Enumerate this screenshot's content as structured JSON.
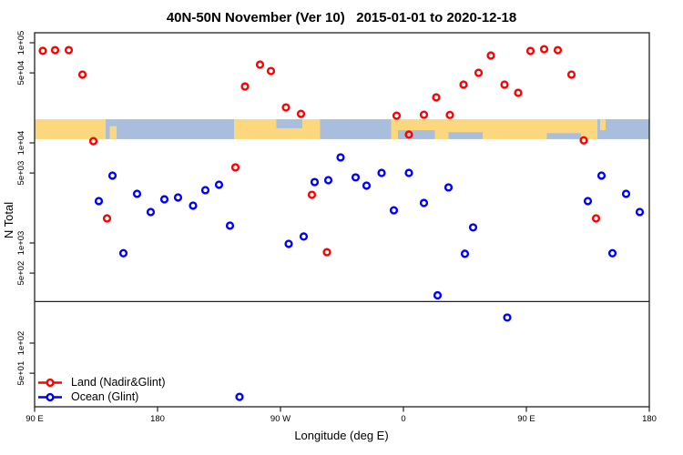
{
  "colors": {
    "land_series": "#FF0000",
    "ocean_series": "#0000FF",
    "map_land": "#FBD77D",
    "map_ocean": "#A9BEDC",
    "axis": "#222222"
  },
  "legend": {
    "items": [
      {
        "key": "land",
        "label": "Land (Nadir&Glint)",
        "color": "#FF0000"
      },
      {
        "key": "ocean",
        "label": "Ocean (Glint)",
        "color": "#0000FF"
      }
    ]
  },
  "chart_data": {
    "type": "scatter",
    "title": "40N-50N November (Ver 10)   2015-01-01 to 2020-12-18",
    "xlabel": "Longitude (deg E)",
    "ylabel": "N Total",
    "x_axis": {
      "note": "longitude unwrapped eastward; axis runs 90E -> 180 -> 90W -> 0 -> 90E -> 180; p = degrees east, 90..540",
      "range": [
        90,
        540
      ],
      "ticks": [
        {
          "p": 90,
          "label": "90 E"
        },
        {
          "p": 180,
          "label": "180"
        },
        {
          "p": 270,
          "label": "90 W"
        },
        {
          "p": 360,
          "label": "0"
        },
        {
          "p": 450,
          "label": "90 E"
        },
        {
          "p": 540,
          "label": "180"
        }
      ]
    },
    "y_axis": {
      "scale": "log",
      "range": [
        20,
        130000
      ],
      "ticks": [
        {
          "v": 100000,
          "label": "1e+05"
        },
        {
          "v": 50000,
          "label": "5e+04"
        },
        {
          "v": 10000,
          "label": "1e+04"
        },
        {
          "v": 5000,
          "label": "5e+03"
        },
        {
          "v": 1000,
          "label": "1e+03"
        },
        {
          "v": 500,
          "label": "5e+02"
        },
        {
          "v": 100,
          "label": "1e+02"
        },
        {
          "v": 50,
          "label": "5e+01"
        }
      ]
    },
    "threshold_line_n": 260,
    "map_band": {
      "n_top": 17200,
      "n_bottom": 10900,
      "segments": [
        {
          "type": "ocean",
          "p": [
            142,
            236
          ],
          "f": [
            0,
            1
          ]
        },
        {
          "type": "ocean",
          "p": [
            299,
            351
          ],
          "f": [
            0,
            1
          ]
        },
        {
          "type": "ocean",
          "p": [
            502,
            540
          ],
          "f": [
            0,
            1
          ]
        },
        {
          "type": "ocean",
          "p": [
            267,
            286
          ],
          "f": [
            0,
            0.45
          ]
        },
        {
          "type": "ocean",
          "p": [
            356,
            383
          ],
          "f": [
            0.55,
            1
          ]
        },
        {
          "type": "ocean",
          "p": [
            393,
            418
          ],
          "f": [
            0.65,
            1
          ]
        },
        {
          "type": "ocean",
          "p": [
            465,
            490
          ],
          "f": [
            0.7,
            1
          ]
        },
        {
          "type": "land",
          "p": [
            145,
            150
          ],
          "f": [
            0.35,
            1
          ]
        },
        {
          "type": "land",
          "p": [
            504,
            508
          ],
          "f": [
            0,
            0.55
          ]
        }
      ]
    },
    "series": [
      {
        "name": "Land (Nadir&Glint)",
        "color": "#FF0000",
        "points_format": "[p_deg_east_unwrapped, N_total]",
        "points": [
          [
            96,
            83000
          ],
          [
            105,
            84500
          ],
          [
            115,
            84500
          ],
          [
            125,
            48100
          ],
          [
            133,
            10400
          ],
          [
            244,
            36600
          ],
          [
            255,
            60500
          ],
          [
            263,
            52200
          ],
          [
            274,
            22600
          ],
          [
            285,
            19500
          ],
          [
            355,
            18700
          ],
          [
            364,
            12100
          ],
          [
            375,
            19100
          ],
          [
            384,
            28500
          ],
          [
            394,
            19000
          ],
          [
            404,
            38200
          ],
          [
            415,
            50100
          ],
          [
            424,
            74600
          ],
          [
            434,
            38200
          ],
          [
            444,
            31600
          ],
          [
            453,
            82800
          ],
          [
            463,
            86300
          ],
          [
            473,
            84500
          ],
          [
            483,
            48100
          ],
          [
            492,
            10600
          ],
          [
            143,
            1760
          ],
          [
            237,
            5690
          ],
          [
            293,
            3030
          ],
          [
            304,
            810
          ],
          [
            501,
            1760
          ]
        ]
      },
      {
        "name": "Ocean (Glint)",
        "color": "#0000FF",
        "points_format": "[p_deg_east_unwrapped, N_total]",
        "points": [
          [
            137,
            2620
          ],
          [
            147,
            4710
          ],
          [
            155,
            790
          ],
          [
            165,
            3100
          ],
          [
            175,
            2040
          ],
          [
            185,
            2730
          ],
          [
            195,
            2850
          ],
          [
            206,
            2360
          ],
          [
            215,
            3370
          ],
          [
            225,
            3820
          ],
          [
            233,
            1490
          ],
          [
            276,
            980
          ],
          [
            287,
            1160
          ],
          [
            295,
            4060
          ],
          [
            305,
            4240
          ],
          [
            314,
            7160
          ],
          [
            325,
            4520
          ],
          [
            333,
            3740
          ],
          [
            344,
            5010
          ],
          [
            353,
            2120
          ],
          [
            364,
            5010
          ],
          [
            375,
            2510
          ],
          [
            385,
            300
          ],
          [
            393,
            3590
          ],
          [
            405,
            780
          ],
          [
            411,
            1430
          ],
          [
            436,
            180
          ],
          [
            495,
            2620
          ],
          [
            505,
            4710
          ],
          [
            513,
            790
          ],
          [
            523,
            3100
          ],
          [
            533,
            2040
          ],
          [
            240,
            29
          ]
        ]
      }
    ]
  }
}
